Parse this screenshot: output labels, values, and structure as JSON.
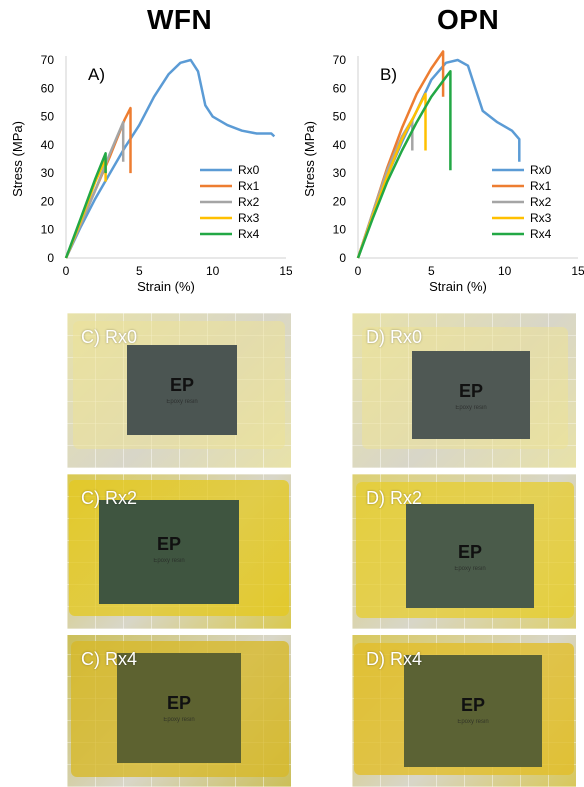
{
  "titles": {
    "left": "WFN",
    "right": "OPN"
  },
  "axis_labels": {
    "x": "Strain (%)",
    "y": "Stress (MPa)"
  },
  "colors": {
    "Rx0": "#5b9bd5",
    "Rx1": "#ed7d31",
    "Rx2": "#a5a5a5",
    "Rx3": "#ffc000",
    "Rx4": "#22a845"
  },
  "chart_data": [
    {
      "type": "line",
      "panel_label": "A)",
      "xlim": [
        0,
        15
      ],
      "ylim": [
        0,
        70
      ],
      "xticks": [
        "0",
        "5",
        "10",
        "15"
      ],
      "yticks": [
        "0",
        "10",
        "20",
        "30",
        "40",
        "50",
        "60",
        "70"
      ],
      "xlabel": "Strain (%)",
      "ylabel": "Stress (MPa)",
      "legend_position": "bottom-right",
      "series": [
        {
          "name": "Rx0",
          "points": [
            [
              0,
              0
            ],
            [
              1,
              11
            ],
            [
              2,
              21
            ],
            [
              3,
              30
            ],
            [
              4,
              39
            ],
            [
              5,
              47
            ],
            [
              6,
              57
            ],
            [
              7,
              65
            ],
            [
              7.8,
              69
            ],
            [
              8.5,
              70
            ],
            [
              9,
              66
            ],
            [
              9.5,
              54
            ],
            [
              10,
              50
            ],
            [
              11,
              47
            ],
            [
              12,
              45
            ],
            [
              13,
              44
            ],
            [
              14,
              44
            ],
            [
              14.2,
              43
            ]
          ]
        },
        {
          "name": "Rx1",
          "points": [
            [
              0,
              0
            ],
            [
              1,
              12
            ],
            [
              2,
              24
            ],
            [
              3,
              36
            ],
            [
              4,
              49
            ],
            [
              4.4,
              53
            ],
            [
              4.4,
              30
            ]
          ]
        },
        {
          "name": "Rx2",
          "points": [
            [
              0,
              0
            ],
            [
              1,
              12
            ],
            [
              2,
              24
            ],
            [
              3,
              37
            ],
            [
              3.9,
              48
            ],
            [
              3.9,
              34
            ]
          ]
        },
        {
          "name": "Rx3",
          "points": [
            [
              0,
              0
            ],
            [
              1,
              13
            ],
            [
              2,
              27
            ],
            [
              2.7,
              35
            ],
            [
              2.7,
              27
            ]
          ]
        },
        {
          "name": "Rx4",
          "points": [
            [
              0,
              0
            ],
            [
              1,
              14
            ],
            [
              2,
              28
            ],
            [
              2.7,
              37
            ],
            [
              2.7,
              30
            ]
          ]
        }
      ]
    },
    {
      "type": "line",
      "panel_label": "B)",
      "xlim": [
        0,
        15
      ],
      "ylim": [
        0,
        70
      ],
      "xticks": [
        "0",
        "5",
        "10",
        "15"
      ],
      "yticks": [
        "0",
        "10",
        "20",
        "30",
        "40",
        "50",
        "60",
        "70"
      ],
      "xlabel": "Strain (%)",
      "ylabel": "Stress (MPa)",
      "legend_position": "bottom-right",
      "series": [
        {
          "name": "Rx0",
          "points": [
            [
              0,
              0
            ],
            [
              1,
              15
            ],
            [
              2,
              29
            ],
            [
              3,
              41
            ],
            [
              4,
              52
            ],
            [
              5,
              63
            ],
            [
              6,
              69
            ],
            [
              6.8,
              70
            ],
            [
              7.5,
              68
            ],
            [
              8,
              60
            ],
            [
              8.5,
              52
            ],
            [
              9.5,
              48
            ],
            [
              10.5,
              45
            ],
            [
              11,
              42
            ],
            [
              11,
              34
            ]
          ]
        },
        {
          "name": "Rx1",
          "points": [
            [
              0,
              0
            ],
            [
              1,
              16
            ],
            [
              2,
              32
            ],
            [
              3,
              46
            ],
            [
              4,
              58
            ],
            [
              5,
              67
            ],
            [
              5.8,
              73
            ],
            [
              5.8,
              57
            ]
          ]
        },
        {
          "name": "Rx2",
          "points": [
            [
              0,
              0
            ],
            [
              1,
              16
            ],
            [
              2,
              31
            ],
            [
              3,
              43
            ],
            [
              3.7,
              49
            ],
            [
              3.7,
              38
            ]
          ]
        },
        {
          "name": "Rx3",
          "points": [
            [
              0,
              0
            ],
            [
              1,
              15
            ],
            [
              2,
              29
            ],
            [
              3,
              42
            ],
            [
              4,
              52
            ],
            [
              4.6,
              58
            ],
            [
              4.6,
              38
            ]
          ]
        },
        {
          "name": "Rx4",
          "points": [
            [
              0,
              0
            ],
            [
              1,
              14
            ],
            [
              2,
              27
            ],
            [
              3,
              38
            ],
            [
              4,
              48
            ],
            [
              5,
              57
            ],
            [
              6,
              64
            ],
            [
              6.3,
              66
            ],
            [
              6.3,
              31
            ]
          ]
        }
      ]
    }
  ],
  "photos": [
    {
      "label": "C) Rx0",
      "ep": "EP",
      "ep_sub": "Epoxy resin",
      "tint": "#e8e2a8",
      "sheet": "rgba(236,226,150,0.55)",
      "panel": "#4b5552"
    },
    {
      "label": "D) Rx0",
      "ep": "EP",
      "ep_sub": "Epoxy resin",
      "tint": "#e8e2a8",
      "sheet": "rgba(236,226,150,0.55)",
      "panel": "#4f5854"
    },
    {
      "label": "C) Rx2",
      "ep": "EP",
      "ep_sub": "Epoxy resin",
      "tint": "#d9c950",
      "sheet": "rgba(228,200,30,0.75)",
      "panel": "#3f5540"
    },
    {
      "label": "D) Rx2",
      "ep": "EP",
      "ep_sub": "Epoxy resin",
      "tint": "#ddd070",
      "sheet": "rgba(232,205,40,0.72)",
      "panel": "#4a5b4a"
    },
    {
      "label": "C) Rx4",
      "ep": "EP",
      "ep_sub": "Epoxy resin",
      "tint": "#cbbf58",
      "sheet": "rgba(215,185,40,0.78)",
      "panel": "#5d6230"
    },
    {
      "label": "D) Rx4",
      "ep": "EP",
      "ep_sub": "Epoxy resin",
      "tint": "#d8c85a",
      "sheet": "rgba(225,190,40,0.78)",
      "panel": "#5b6234"
    }
  ]
}
